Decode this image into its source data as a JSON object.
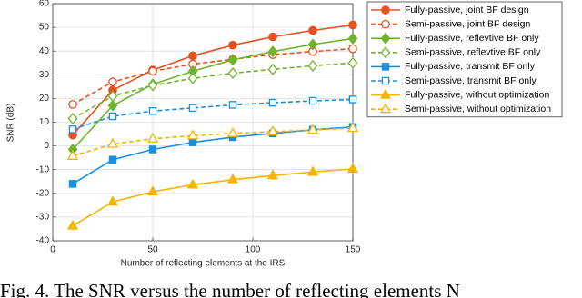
{
  "chart_data": {
    "type": "line",
    "xlabel": "Number of reflecting elements at the IRS",
    "ylabel": "SNR (dB)",
    "caption": "Fig. 4.  The SNR versus the number of reflecting elements  N",
    "x": [
      10,
      30,
      50,
      70,
      90,
      110,
      130,
      150
    ],
    "xlim": [
      0,
      150
    ],
    "xticks": [
      0,
      50,
      100,
      150
    ],
    "ylim": [
      -40,
      60
    ],
    "yticks": [
      -40,
      -30,
      -20,
      -10,
      0,
      10,
      20,
      30,
      40,
      50,
      60
    ],
    "grid": true,
    "legend": "upper right",
    "series": [
      {
        "name": "Fully-passive, joint BF design",
        "color": "#e8511f",
        "dash": false,
        "marker": "circle",
        "marker_fill": true,
        "values": [
          4.6,
          23.5,
          32,
          38,
          42.5,
          46,
          48.7,
          51
        ]
      },
      {
        "name": "Semi-passive, joint BF design",
        "color": "#e8511f",
        "dash": true,
        "marker": "circle",
        "marker_fill": false,
        "values": [
          17.5,
          27,
          31.5,
          34.5,
          36.5,
          38.5,
          39.8,
          41
        ]
      },
      {
        "name": "Fully-passive, reflevtive BF only",
        "color": "#6fb52c",
        "dash": false,
        "marker": "diamond",
        "marker_fill": true,
        "values": [
          -1.5,
          17,
          26,
          31.5,
          36.3,
          39.8,
          42.8,
          45.3
        ]
      },
      {
        "name": "Semi-passive, reflevtive BF only",
        "color": "#6fb52c",
        "dash": true,
        "marker": "diamond",
        "marker_fill": false,
        "values": [
          11.5,
          21,
          25.5,
          28.5,
          30.7,
          32.3,
          33.8,
          35
        ]
      },
      {
        "name": "Fully-passive, transmit BF only",
        "color": "#1a8fe0",
        "dash": false,
        "marker": "square",
        "marker_fill": true,
        "values": [
          -16,
          -5.8,
          -1.5,
          1.5,
          3.7,
          5.3,
          6.8,
          8
        ]
      },
      {
        "name": "Semi-passive, transmit BF only",
        "color": "#1a8fe0",
        "dash": true,
        "marker": "square",
        "marker_fill": false,
        "values": [
          7,
          12.5,
          14.7,
          16,
          17.3,
          18.2,
          19,
          19.6
        ]
      },
      {
        "name": "Fully-passive, without optimization",
        "color": "#f5b400",
        "dash": false,
        "marker": "triangle",
        "marker_fill": true,
        "values": [
          -33.7,
          -23.6,
          -19.3,
          -16.4,
          -14.2,
          -12.5,
          -11,
          -9.7
        ]
      },
      {
        "name": "Semi-passive, without optimization",
        "color": "#f5b400",
        "dash": true,
        "marker": "triangle",
        "marker_fill": false,
        "values": [
          -4.3,
          0.8,
          3,
          4.3,
          5.3,
          6,
          6.7,
          7.5
        ]
      }
    ]
  }
}
